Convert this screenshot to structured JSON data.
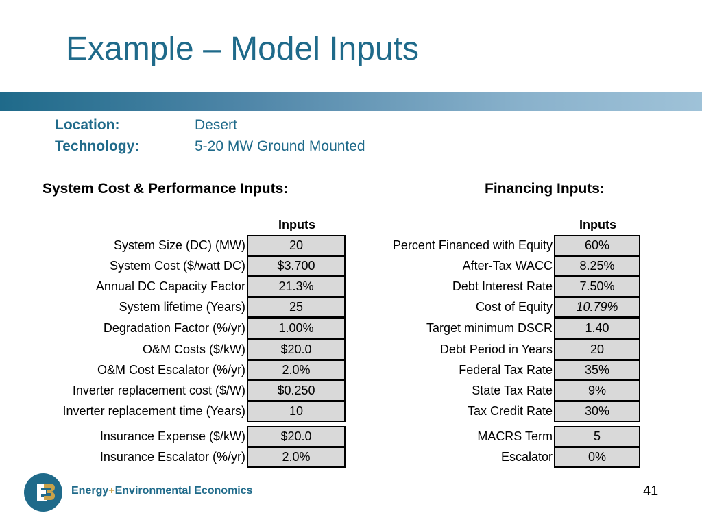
{
  "title": "Example – Model Inputs",
  "meta": {
    "location_label": "Location:",
    "location_value": "Desert",
    "technology_label": "Technology:",
    "technology_value": "5-20 MW Ground Mounted"
  },
  "system": {
    "heading": "System Cost & Performance Inputs:",
    "column_header": "Inputs",
    "rows": [
      {
        "label": "System Size (DC) (MW)",
        "value": "20"
      },
      {
        "label": "System Cost ($/watt DC)",
        "value": "$3.700"
      },
      {
        "label": "Annual DC Capacity Factor",
        "value": "21.3%"
      },
      {
        "label": "System lifetime (Years)",
        "value": "25"
      },
      {
        "label": "Degradation Factor (%/yr)",
        "value": "1.00%"
      },
      {
        "label": "O&M Costs ($/kW)",
        "value": "$20.0"
      },
      {
        "label": "O&M Cost Escalator (%/yr)",
        "value": "2.0%"
      },
      {
        "label": "Inverter replacement cost ($/W)",
        "value": "$0.250"
      },
      {
        "label": "Inverter replacement time (Years)",
        "value": "10"
      },
      {
        "label": "Insurance Expense ($/kW)",
        "value": "$20.0"
      },
      {
        "label": "Insurance Escalator (%/yr)",
        "value": "2.0%"
      }
    ]
  },
  "financing": {
    "heading": "Financing Inputs:",
    "column_header": "Inputs",
    "rows": [
      {
        "label": "Percent Financed with Equity",
        "value": "60%"
      },
      {
        "label": "After-Tax WACC",
        "value": "8.25%"
      },
      {
        "label": "Debt Interest Rate",
        "value": "7.50%"
      },
      {
        "label": "Cost of Equity",
        "value": "10.79%"
      },
      {
        "label": "Target minimum DSCR",
        "value": "1.40"
      },
      {
        "label": "Debt Period in Years",
        "value": "20"
      },
      {
        "label": "Federal Tax Rate",
        "value": "35%"
      },
      {
        "label": "State Tax Rate",
        "value": "9%"
      },
      {
        "label": "Tax Credit Rate",
        "value": "30%"
      },
      {
        "label": "MACRS Term",
        "value": "5"
      },
      {
        "label": "Escalator",
        "value": "0%"
      }
    ]
  },
  "footer": {
    "brand_part1": "Energy",
    "brand_plus": "+",
    "brand_part2": "Environmental Economics",
    "page_number": "41"
  },
  "colors": {
    "accent": "#1f6a8a",
    "cell_fill": "#d9d9d9",
    "logo_gold": "#c8a24a"
  }
}
